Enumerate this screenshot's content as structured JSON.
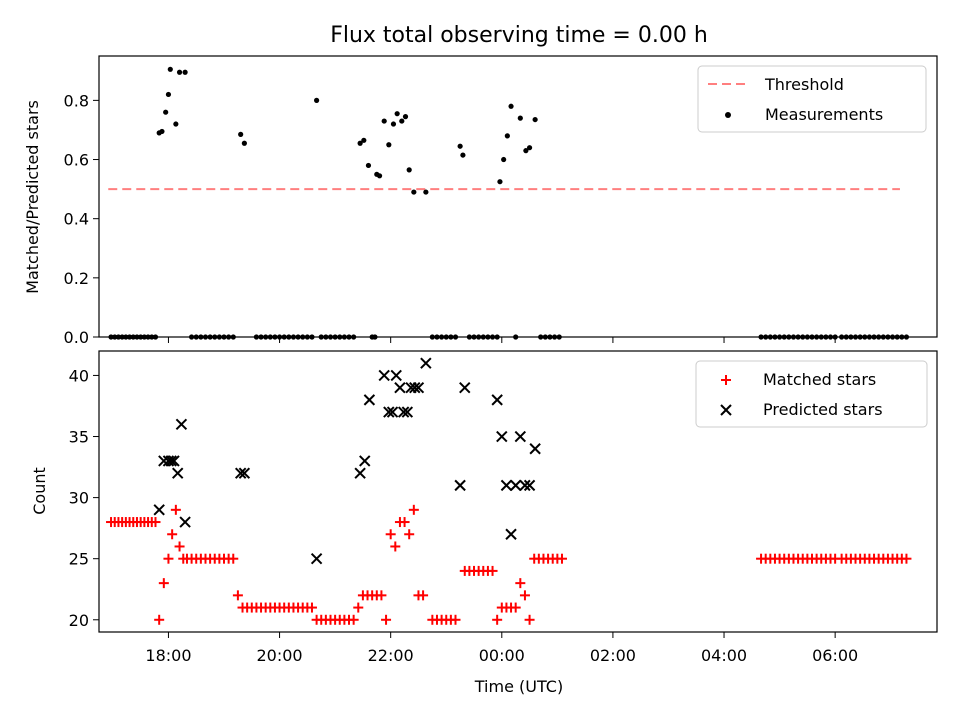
{
  "chart_data": [
    {
      "type": "scatter",
      "title": "Flux total observing time = 0.00 h",
      "xlabel": "",
      "ylabel": "Matched/Predicted stars",
      "xlim": [
        "16:45",
        "07:50"
      ],
      "ylim": [
        0,
        0.95
      ],
      "yticks": [
        0.0,
        0.2,
        0.4,
        0.6,
        0.8
      ],
      "ytick_labels": [
        "0.0",
        "0.2",
        "0.4",
        "0.6",
        "0.8"
      ],
      "grid": false,
      "legend_position": "top-right",
      "threshold": {
        "name": "Threshold",
        "value": 0.5,
        "x_start": "16:55",
        "x_end": "07:10",
        "color": "#ff7f7f",
        "style": "dashed"
      },
      "series": [
        {
          "name": "Measurements",
          "marker": "dot",
          "color": "#000000",
          "x": [
            "17:50",
            "17:53",
            "17:57",
            "18:00",
            "18:02",
            "18:08",
            "18:12",
            "18:18",
            "19:18",
            "19:22",
            "20:40",
            "21:27",
            "21:31",
            "21:36",
            "21:45",
            "21:48",
            "21:53",
            "21:58",
            "22:03",
            "22:07",
            "22:12",
            "22:16",
            "22:20",
            "22:25",
            "22:38",
            "23:15",
            "23:18",
            "23:58",
            "24:02",
            "24:06",
            "24:10",
            "24:20",
            "24:26",
            "24:30",
            "24:36"
          ],
          "y": [
            0.69,
            0.695,
            0.76,
            0.82,
            0.905,
            0.72,
            0.895,
            0.895,
            0.685,
            0.655,
            0.8,
            0.655,
            0.665,
            0.58,
            0.55,
            0.545,
            0.73,
            0.65,
            0.72,
            0.755,
            0.73,
            0.745,
            0.565,
            0.49,
            0.49,
            0.645,
            0.615,
            0.525,
            0.6,
            0.68,
            0.78,
            0.74,
            0.63,
            0.64,
            0.735
          ],
          "zeros_x": [
            "16:58",
            "17:02",
            "17:06",
            "17:10",
            "17:14",
            "17:18",
            "17:22",
            "17:26",
            "17:30",
            "17:34",
            "17:38",
            "17:42",
            "17:46",
            "18:25",
            "18:30",
            "18:35",
            "18:40",
            "18:45",
            "18:50",
            "18:55",
            "19:00",
            "19:05",
            "19:10",
            "19:35",
            "19:40",
            "19:45",
            "19:50",
            "19:55",
            "20:00",
            "20:05",
            "20:10",
            "20:15",
            "20:20",
            "20:25",
            "20:30",
            "20:35",
            "20:45",
            "20:50",
            "20:55",
            "21:00",
            "21:05",
            "21:10",
            "21:15",
            "21:20",
            "21:40",
            "21:43",
            "22:45",
            "22:50",
            "22:55",
            "23:00",
            "23:05",
            "23:10",
            "23:25",
            "23:30",
            "23:35",
            "23:40",
            "23:45",
            "23:50",
            "23:55",
            "24:15",
            "24:42",
            "24:47",
            "24:52",
            "24:57",
            "25:02",
            "28:40",
            "28:45",
            "28:50",
            "28:55",
            "29:00",
            "29:05",
            "29:10",
            "29:15",
            "29:20",
            "29:25",
            "29:30",
            "29:35",
            "29:40",
            "29:45",
            "29:50",
            "29:55",
            "30:00",
            "30:07",
            "30:12",
            "30:17",
            "30:22",
            "30:27",
            "30:32",
            "30:37",
            "30:42",
            "30:47",
            "30:52",
            "30:57",
            "31:02",
            "31:07",
            "31:12",
            "31:17"
          ],
          "zeros_y": 0
        }
      ]
    },
    {
      "type": "scatter",
      "title": "",
      "xlabel": "Time (UTC)",
      "ylabel": "Count",
      "xlim": [
        "16:45",
        "07:50"
      ],
      "ylim": [
        19,
        42
      ],
      "yticks": [
        20,
        25,
        30,
        35,
        40
      ],
      "ytick_labels": [
        "20",
        "25",
        "30",
        "35",
        "40"
      ],
      "xticks": [
        "18:00",
        "20:00",
        "22:00",
        "00:00",
        "02:00",
        "04:00",
        "06:00"
      ],
      "grid": false,
      "legend_position": "top-right",
      "series": [
        {
          "name": "Matched stars",
          "marker": "plus",
          "color": "#ff0000",
          "x": [
            "16:58",
            "17:02",
            "17:06",
            "17:10",
            "17:14",
            "17:18",
            "17:22",
            "17:26",
            "17:30",
            "17:34",
            "17:38",
            "17:42",
            "17:46",
            "17:50",
            "17:55",
            "18:00",
            "18:04",
            "18:08",
            "18:12",
            "18:16",
            "18:20",
            "18:25",
            "18:30",
            "18:35",
            "18:40",
            "18:45",
            "18:50",
            "18:55",
            "19:00",
            "19:05",
            "19:10",
            "19:15",
            "19:20",
            "19:25",
            "19:30",
            "19:35",
            "19:40",
            "19:45",
            "19:50",
            "19:55",
            "20:00",
            "20:05",
            "20:10",
            "20:15",
            "20:20",
            "20:25",
            "20:30",
            "20:35",
            "20:40",
            "20:45",
            "20:50",
            "20:55",
            "21:00",
            "21:05",
            "21:10",
            "21:15",
            "21:20",
            "21:25",
            "21:30",
            "21:35",
            "21:40",
            "21:45",
            "21:50",
            "21:55",
            "22:00",
            "22:05",
            "22:10",
            "22:15",
            "22:20",
            "22:25",
            "22:30",
            "22:35",
            "22:45",
            "22:50",
            "22:55",
            "23:00",
            "23:05",
            "23:10",
            "23:20",
            "23:25",
            "23:30",
            "23:35",
            "23:40",
            "23:45",
            "23:50",
            "23:55",
            "24:00",
            "24:05",
            "24:10",
            "24:15",
            "24:20",
            "24:25",
            "24:30",
            "24:35",
            "24:40",
            "24:45",
            "24:50",
            "24:55",
            "25:00",
            "25:05",
            "28:40",
            "28:45",
            "28:50",
            "28:55",
            "29:00",
            "29:05",
            "29:10",
            "29:15",
            "29:20",
            "29:25",
            "29:30",
            "29:35",
            "29:40",
            "29:45",
            "29:50",
            "29:55",
            "30:00",
            "30:07",
            "30:12",
            "30:17",
            "30:22",
            "30:27",
            "30:32",
            "30:37",
            "30:42",
            "30:47",
            "30:52",
            "30:57",
            "31:02",
            "31:07",
            "31:12",
            "31:17"
          ],
          "y": [
            28,
            28,
            28,
            28,
            28,
            28,
            28,
            28,
            28,
            28,
            28,
            28,
            28,
            20,
            23,
            25,
            27,
            29,
            26,
            25,
            25,
            25,
            25,
            25,
            25,
            25,
            25,
            25,
            25,
            25,
            25,
            22,
            21,
            21,
            21,
            21,
            21,
            21,
            21,
            21,
            21,
            21,
            21,
            21,
            21,
            21,
            21,
            21,
            20,
            20,
            20,
            20,
            20,
            20,
            20,
            20,
            20,
            21,
            22,
            22,
            22,
            22,
            22,
            20,
            27,
            26,
            28,
            28,
            27,
            29,
            22,
            22,
            20,
            20,
            20,
            20,
            20,
            20,
            24,
            24,
            24,
            24,
            24,
            24,
            24,
            20,
            21,
            21,
            21,
            21,
            23,
            22,
            20,
            25,
            25,
            25,
            25,
            25,
            25,
            25,
            25,
            25,
            25,
            25,
            25,
            25,
            25,
            25,
            25,
            25,
            25,
            25,
            25,
            25,
            25,
            25,
            25,
            25,
            25,
            25,
            25,
            25,
            25,
            25,
            25,
            25,
            25,
            25,
            25,
            25,
            25,
            25
          ]
        },
        {
          "name": "Predicted stars",
          "marker": "x",
          "color": "#000000",
          "x": [
            "17:50",
            "17:55",
            "18:00",
            "18:03",
            "18:06",
            "18:10",
            "18:14",
            "18:18",
            "19:18",
            "19:22",
            "20:40",
            "21:27",
            "21:32",
            "21:37",
            "21:53",
            "21:58",
            "22:02",
            "22:06",
            "22:10",
            "22:14",
            "22:18",
            "22:22",
            "22:26",
            "22:30",
            "22:38",
            "23:15",
            "23:20",
            "23:55",
            "24:00",
            "24:05",
            "24:10",
            "24:15",
            "24:20",
            "24:25",
            "24:30",
            "24:36"
          ],
          "y": [
            29,
            33,
            33,
            33,
            33,
            32,
            36,
            28,
            32,
            32,
            25,
            32,
            33,
            38,
            40,
            37,
            37,
            40,
            39,
            37,
            37,
            39,
            39,
            39,
            41,
            31,
            39,
            38,
            35,
            31,
            27,
            31,
            35,
            31,
            31,
            34
          ]
        }
      ]
    }
  ]
}
